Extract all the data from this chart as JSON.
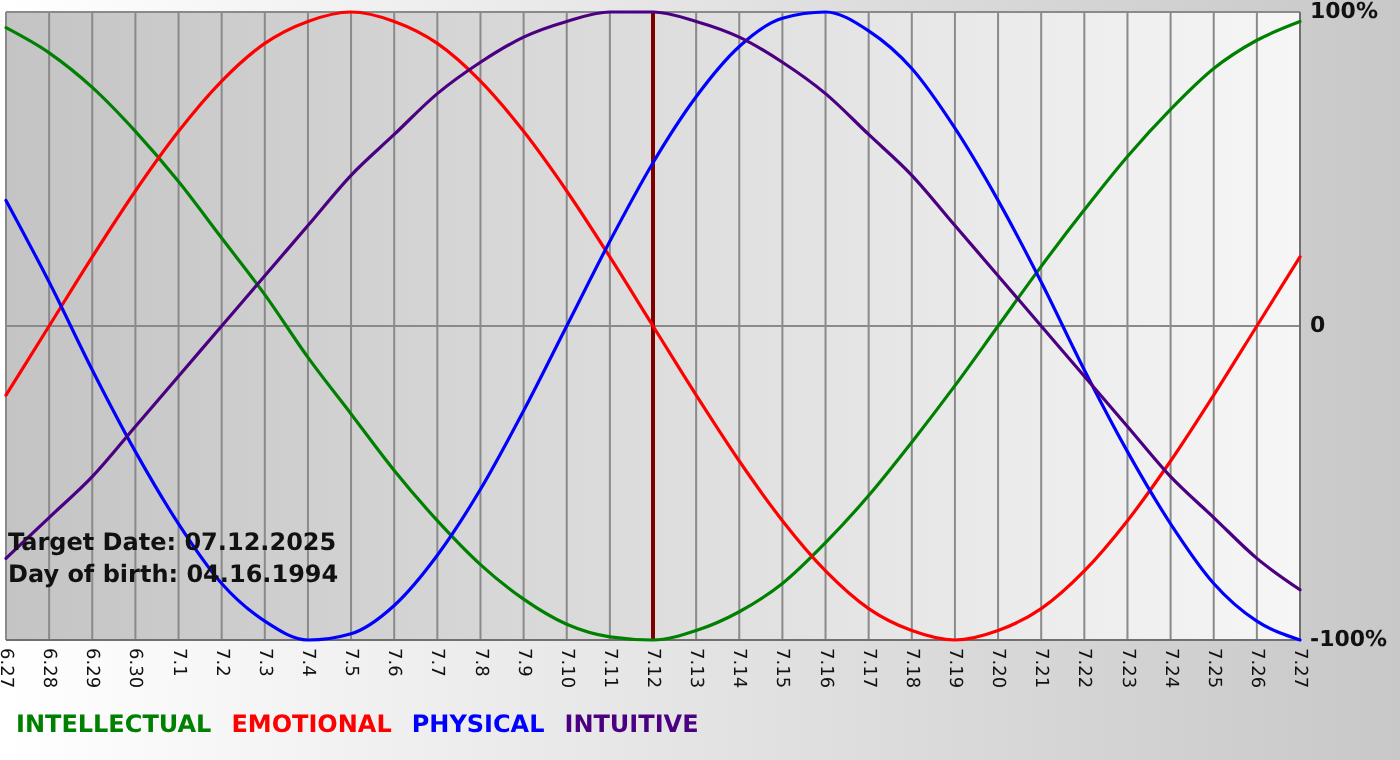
{
  "chart_data": {
    "type": "line",
    "categories": [
      "6.27",
      "6.28",
      "6.29",
      "6.30",
      "7.1",
      "7.2",
      "7.3",
      "7.4",
      "7.5",
      "7.6",
      "7.7",
      "7.8",
      "7.9",
      "7.10",
      "7.11",
      "7.12",
      "7.13",
      "7.14",
      "7.15",
      "7.16",
      "7.17",
      "7.18",
      "7.19",
      "7.20",
      "7.21",
      "7.22",
      "7.23",
      "7.24",
      "7.25",
      "7.26",
      "7.27"
    ],
    "series": [
      {
        "name": "INTELLECTUAL",
        "color": "#008000",
        "values": [
          95,
          87,
          76,
          62,
          46,
          28,
          10,
          -10,
          -28,
          -46,
          -62,
          -76,
          -87,
          -95,
          -99,
          -100,
          -97,
          -91,
          -82,
          -69,
          -54,
          -37,
          -19,
          0,
          19,
          37,
          54,
          69,
          82,
          91,
          97
        ]
      },
      {
        "name": "EMOTIONAL",
        "color": "#ff0000",
        "values": [
          -22,
          0,
          22,
          43,
          62,
          78,
          90,
          97,
          100,
          97,
          90,
          78,
          62,
          43,
          22,
          0,
          -22,
          -43,
          -62,
          -78,
          -90,
          -97,
          -100,
          -97,
          -90,
          -78,
          -62,
          -43,
          -22,
          0,
          22
        ]
      },
      {
        "name": "PHYSICAL",
        "color": "#0000ff",
        "values": [
          40,
          14,
          -14,
          -40,
          -63,
          -82,
          -94,
          -100,
          -98,
          -89,
          -73,
          -52,
          -27,
          0,
          27,
          52,
          73,
          89,
          98,
          100,
          94,
          82,
          63,
          40,
          14,
          -14,
          -40,
          -63,
          -82,
          -94,
          -100
        ]
      },
      {
        "name": "INTUITIVE",
        "color": "#4b0082",
        "values": [
          -74,
          -61,
          -48,
          -32,
          -16,
          0,
          16,
          32,
          48,
          61,
          74,
          84,
          92,
          97,
          100,
          100,
          97,
          92,
          84,
          74,
          61,
          48,
          32,
          16,
          0,
          -16,
          -32,
          -48,
          -61,
          -74,
          -84
        ]
      }
    ],
    "ylim": [
      -100,
      100
    ],
    "yticks": [
      {
        "value": 100,
        "label": "100%"
      },
      0,
      {
        "value": -100,
        "label": "-100%"
      }
    ],
    "ref_lines": [
      {
        "axis": "x",
        "value": "7.12",
        "color": "#800000"
      }
    ],
    "annotations": [
      "Target Date: 07.12.2025",
      "Day of birth: 04.16.1994"
    ],
    "grid": true,
    "legend": "bottom",
    "marker": "none",
    "line_style": "solid"
  }
}
